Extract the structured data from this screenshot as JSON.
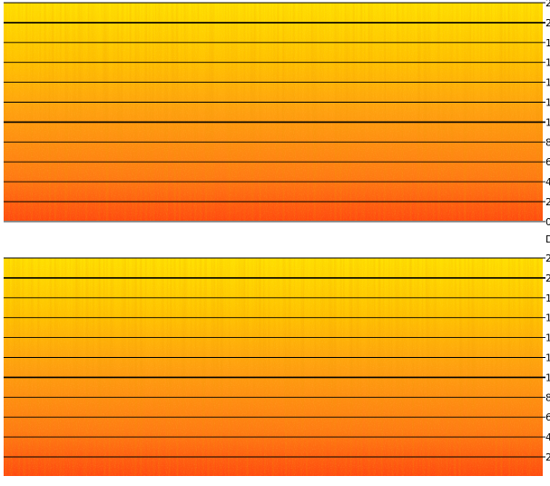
{
  "panels": [
    {
      "tick_labels": [
        "2",
        "2",
        "1",
        "1",
        "1",
        "1",
        "1",
        "8",
        "6",
        "4",
        "2",
        "0"
      ]
    },
    {
      "tick_labels": [
        "2",
        "2",
        "1",
        "1",
        "1",
        "1",
        "1",
        "8",
        "6",
        "4",
        "2"
      ]
    }
  ],
  "separator_label": "D"
}
